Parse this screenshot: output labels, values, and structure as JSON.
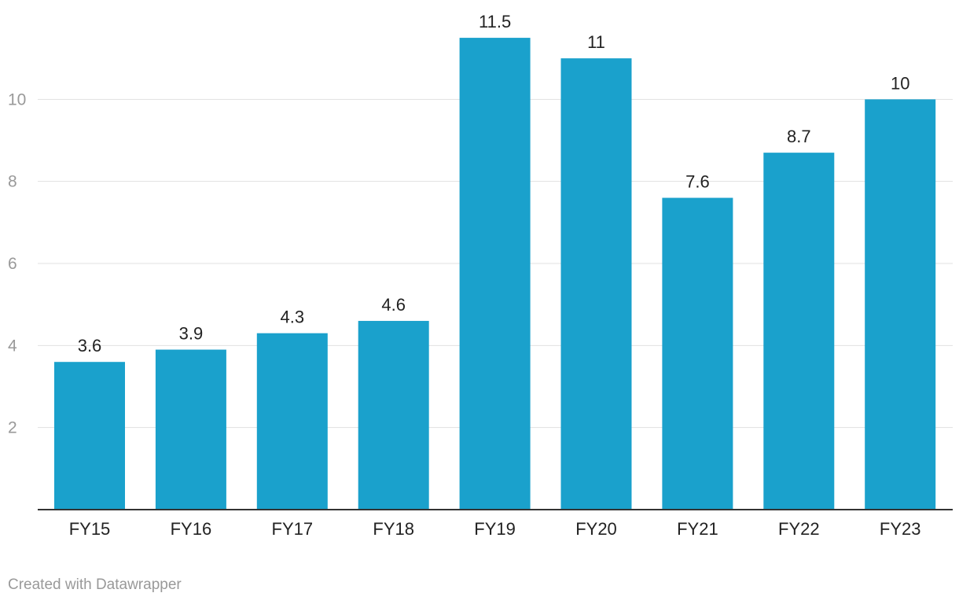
{
  "chart_data": {
    "type": "bar",
    "categories": [
      "FY15",
      "FY16",
      "FY17",
      "FY18",
      "FY19",
      "FY20",
      "FY21",
      "FY22",
      "FY23"
    ],
    "values": [
      3.6,
      3.9,
      4.3,
      4.6,
      11.5,
      11,
      7.6,
      8.7,
      10
    ],
    "value_labels": [
      "3.6",
      "3.9",
      "4.3",
      "4.6",
      "11.5",
      "11",
      "7.6",
      "8.7",
      "10"
    ],
    "yticks": [
      2,
      4,
      6,
      8,
      10
    ],
    "ylim": [
      0,
      12
    ],
    "grid": true,
    "title": "",
    "xlabel": "",
    "ylabel": ""
  },
  "colors": {
    "bar": "#1aa1cc",
    "grid": "#e1e1e1",
    "axis": "#333333",
    "tick_label": "#999999",
    "text": "#222222"
  },
  "footer": {
    "credit": "Created with Datawrapper"
  }
}
